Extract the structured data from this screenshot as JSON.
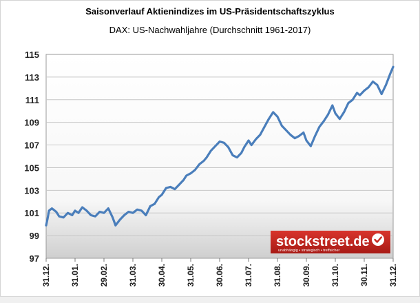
{
  "chart_data": {
    "type": "line",
    "title": "Saisonverlauf Aktienindizes im US-Präsidentschaftszyklus",
    "subtitle": "DAX: US-Nachwahljahre (Durchschnitt 1961-2017)",
    "xlabel": "",
    "ylabel": "",
    "ylim": [
      97,
      115
    ],
    "y_ticks": [
      97,
      99,
      101,
      103,
      105,
      107,
      109,
      111,
      113,
      115
    ],
    "x_ticks": [
      "31.12.",
      "31.01.",
      "29.02.",
      "31.03.",
      "30.04.",
      "31.05.",
      "30.06.",
      "31.07.",
      "31.08.",
      "30.09.",
      "31.10.",
      "30.11.",
      "31.12."
    ],
    "grid": true,
    "legend": "none",
    "series": [
      {
        "color": "#4a7ebb",
        "x": [
          0,
          0.05,
          0.1,
          0.2,
          0.35,
          0.45,
          0.6,
          0.75,
          0.9,
          1.0,
          1.12,
          1.25,
          1.4,
          1.55,
          1.7,
          1.85,
          2.0,
          2.15,
          2.3,
          2.4,
          2.55,
          2.7,
          2.85,
          3.0,
          3.15,
          3.3,
          3.45,
          3.6,
          3.75,
          3.9,
          4.0,
          4.15,
          4.3,
          4.45,
          4.6,
          4.75,
          4.85,
          5.0,
          5.15,
          5.3,
          5.45,
          5.55,
          5.7,
          5.85,
          6.0,
          6.15,
          6.3,
          6.45,
          6.6,
          6.75,
          6.85,
          7.0,
          7.1,
          7.25,
          7.4,
          7.55,
          7.7,
          7.85,
          8.0,
          8.15,
          8.3,
          8.45,
          8.6,
          8.75,
          8.9,
          9.0,
          9.15,
          9.3,
          9.45,
          9.6,
          9.75,
          9.9,
          10.0,
          10.15,
          10.3,
          10.45,
          10.6,
          10.75,
          10.85,
          11.0,
          11.15,
          11.3,
          11.45,
          11.6,
          11.75,
          11.9,
          12.0
        ],
        "values": [
          99.9,
          100.5,
          101.2,
          101.4,
          101.1,
          100.7,
          100.6,
          101.0,
          100.8,
          101.2,
          101.0,
          101.5,
          101.2,
          100.8,
          100.7,
          101.1,
          101.0,
          101.4,
          100.6,
          99.9,
          100.4,
          100.8,
          101.1,
          101.0,
          101.3,
          101.2,
          100.8,
          101.6,
          101.8,
          102.4,
          102.6,
          103.2,
          103.3,
          103.1,
          103.5,
          103.9,
          104.3,
          104.5,
          104.8,
          105.3,
          105.6,
          105.9,
          106.5,
          106.9,
          107.3,
          107.2,
          106.8,
          106.1,
          105.9,
          106.3,
          106.8,
          107.4,
          107.0,
          107.5,
          107.9,
          108.6,
          109.3,
          109.9,
          109.5,
          108.7,
          108.3,
          107.9,
          107.6,
          107.8,
          108.1,
          107.4,
          106.9,
          107.8,
          108.6,
          109.1,
          109.7,
          110.5,
          109.8,
          109.3,
          109.9,
          110.7,
          111.0,
          111.6,
          111.4,
          111.8,
          112.1,
          112.6,
          112.3,
          111.5,
          112.3,
          113.3,
          113.9
        ]
      }
    ]
  },
  "logo": {
    "text": "stockstreet.de",
    "tagline": "unabhängig • strategisch • treffsicher"
  }
}
